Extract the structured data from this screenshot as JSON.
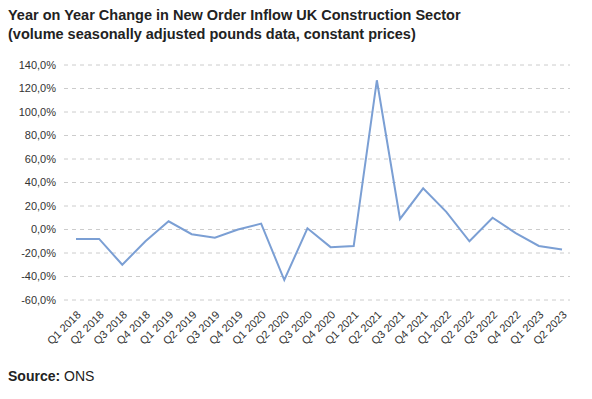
{
  "chart_data": {
    "type": "line",
    "title": "Year on Year Change in New Order Inflow UK Construction Sector",
    "subtitle": "(volume seasonally adjusted pounds data, constant prices)",
    "source_label": "Source:",
    "source": "ONS",
    "categories": [
      "Q1 2018",
      "Q2 2018",
      "Q3 2018",
      "Q4 2018",
      "Q1 2019",
      "Q2 2019",
      "Q3 2019",
      "Q4 2019",
      "Q1 2020",
      "Q2 2020",
      "Q3 2020",
      "Q4 2020",
      "Q1 2021",
      "Q2 2021",
      "Q3 2021",
      "Q4 2021",
      "Q1 2022",
      "Q2 2022",
      "Q3 2022",
      "Q4 2022",
      "Q1 2023",
      "Q2 2023"
    ],
    "values": [
      -8,
      -8,
      -30,
      -10,
      7,
      -4,
      -7,
      0,
      5,
      -43,
      1,
      -15,
      -14,
      127,
      9,
      35,
      15,
      -10,
      10,
      -3,
      -14,
      -17
    ],
    "color": "#7b9fd4",
    "ylim": [
      -60,
      140
    ],
    "yticks": [
      {
        "value": -60,
        "label": "-60,0%"
      },
      {
        "value": -40,
        "label": "-40,0%"
      },
      {
        "value": -20,
        "label": "-20,0%"
      },
      {
        "value": 0,
        "label": "0,0%"
      },
      {
        "value": 20,
        "label": "20,0%"
      },
      {
        "value": 40,
        "label": "40,0%"
      },
      {
        "value": 60,
        "label": "60,0%"
      },
      {
        "value": 80,
        "label": "80,0%"
      },
      {
        "value": 100,
        "label": "100,0%"
      },
      {
        "value": 120,
        "label": "120,0%"
      },
      {
        "value": 140,
        "label": "140,0%"
      }
    ],
    "grid": true
  }
}
